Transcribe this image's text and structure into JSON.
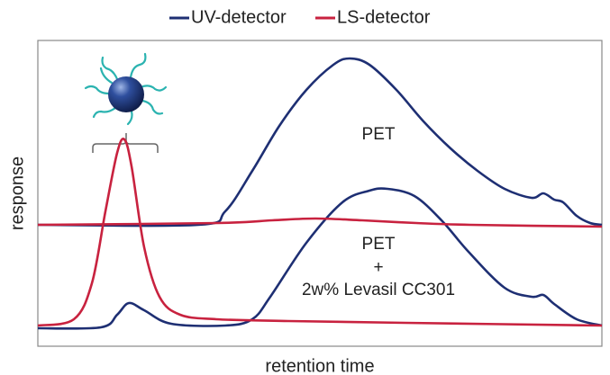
{
  "chart_data": {
    "type": "line",
    "x_label": "retention time",
    "y_label": "response",
    "xlim": [
      0,
      626
    ],
    "ylim": [
      0,
      340
    ],
    "series": [
      {
        "name": "UV-detector",
        "color": "#1e2f73",
        "traces": [
          {
            "x": [
              0,
              178,
              208,
              238,
              268,
              298,
              328,
              346,
              368,
              398,
              428,
              458,
              488,
              518,
              548,
              561,
              573,
              583,
              598,
              613,
              626
            ],
            "values": [
              135,
              135,
              150,
              195,
              245,
              285,
              313,
              320,
              313,
              285,
              250,
              220,
              195,
              175,
              165,
              170,
              163,
              160,
              145,
              137,
              135
            ]
          },
          {
            "x": [
              0,
              70,
              88,
              101,
              118,
              148,
              208,
              238,
              258,
              298,
              338,
              368,
              388,
              418,
              448,
              478,
              518,
              548,
              561,
              573,
              598,
              626
            ],
            "values": [
              20,
              21,
              35,
              48,
              40,
              25,
              23,
              30,
              55,
              115,
              160,
              173,
              175,
              167,
              140,
              105,
              65,
              55,
              57,
              47,
              30,
              23
            ]
          }
        ]
      },
      {
        "name": "LS-detector",
        "color": "#c8223f",
        "traces": [
          {
            "x": [
              0,
              200,
              260,
              308,
              360,
              420,
              480,
              626
            ],
            "values": [
              135,
              137,
              140,
              142,
              140,
              137,
              135,
              133
            ]
          },
          {
            "x": [
              0,
              40,
              60,
              75,
              88,
              96,
              104,
              118,
              135,
              158,
              198,
              278,
              408,
              626
            ],
            "values": [
              23,
              30,
              70,
              150,
              215,
              230,
              200,
              110,
              55,
              35,
              30,
              28,
              26,
              23
            ]
          }
        ]
      }
    ],
    "annotations": [
      "PET",
      "PET",
      "+",
      "2w% Levasil CC301"
    ]
  }
}
